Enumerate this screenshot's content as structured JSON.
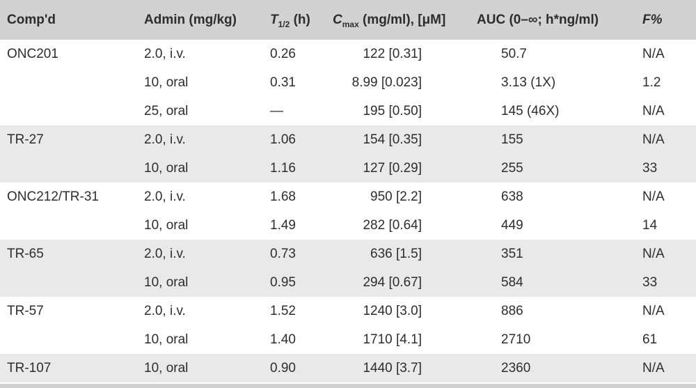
{
  "colors": {
    "header_bg": "#d2d2d2",
    "stripe_bg": "#e9e9e9",
    "row_bg": "#ffffff",
    "bottom_strip_bg": "#cfcfcf",
    "text": "#2d2d2d"
  },
  "table": {
    "columns": [
      {
        "label": "Comp'd"
      },
      {
        "label": "Admin (mg/kg)"
      },
      {
        "prefix": "T",
        "sub": "1/2",
        "suffix": " (h)"
      },
      {
        "prefix": "C",
        "sub": "max",
        "suffix": " (mg/ml), [μM]"
      },
      {
        "label": "AUC (0–∞; h*ng/ml)"
      },
      {
        "label": "F%"
      }
    ],
    "groups": [
      {
        "compound": "ONC201",
        "shaded": false,
        "rows": [
          {
            "admin": "2.0, i.v.",
            "t_half": "0.26",
            "c_max": "122 [0.31]",
            "auc": "50.7",
            "f_pct": "N/A"
          },
          {
            "admin": "10, oral",
            "t_half": "0.31",
            "c_max": "8.99 [0.023]",
            "auc": "3.13 (1X)",
            "f_pct": "1.2"
          },
          {
            "admin": "25, oral",
            "t_half": "—",
            "c_max": "195 [0.50]",
            "auc": "145 (46X)",
            "f_pct": "N/A"
          }
        ]
      },
      {
        "compound": "TR-27",
        "shaded": true,
        "rows": [
          {
            "admin": "2.0, i.v.",
            "t_half": "1.06",
            "c_max": "154 [0.35]",
            "auc": "155",
            "f_pct": "N/A"
          },
          {
            "admin": "10, oral",
            "t_half": "1.16",
            "c_max": "127 [0.29]",
            "auc": "255",
            "f_pct": "33"
          }
        ]
      },
      {
        "compound": "ONC212/TR-31",
        "shaded": false,
        "rows": [
          {
            "admin": "2.0, i.v.",
            "t_half": "1.68",
            "c_max": "950 [2.2]",
            "auc": "638",
            "f_pct": "N/A"
          },
          {
            "admin": "10, oral",
            "t_half": "1.49",
            "c_max": "282 [0.64]",
            "auc": "449",
            "f_pct": "14"
          }
        ]
      },
      {
        "compound": "TR-65",
        "shaded": true,
        "rows": [
          {
            "admin": "2.0, i.v.",
            "t_half": "0.73",
            "c_max": "636 [1.5]",
            "auc": "351",
            "f_pct": "N/A"
          },
          {
            "admin": "10, oral",
            "t_half": "0.95",
            "c_max": "294 [0.67]",
            "auc": "584",
            "f_pct": "33"
          }
        ]
      },
      {
        "compound": "TR-57",
        "shaded": false,
        "rows": [
          {
            "admin": "2.0, i.v.",
            "t_half": "1.52",
            "c_max": "1240 [3.0]",
            "auc": "886",
            "f_pct": "N/A"
          },
          {
            "admin": "10, oral",
            "t_half": "1.40",
            "c_max": "1710 [4.1]",
            "auc": "2710",
            "f_pct": "61"
          }
        ]
      },
      {
        "compound": "TR-107",
        "shaded": true,
        "rows": [
          {
            "admin": "10, oral",
            "t_half": "0.90",
            "c_max": "1440 [3.7]",
            "auc": "2360",
            "f_pct": "N/A"
          }
        ]
      }
    ]
  }
}
